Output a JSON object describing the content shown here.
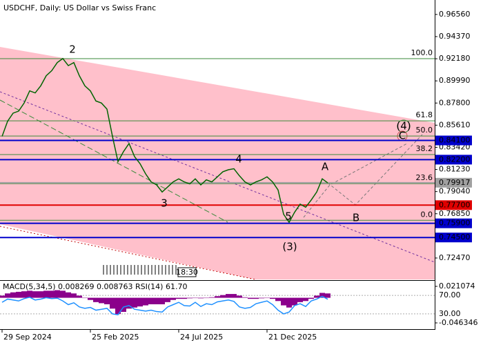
{
  "chart_data": {
    "type": "line",
    "title": "USDCHF, Daily:  US Dollar vs Swiss Franc",
    "categories": [
      "29 Sep 2024",
      null,
      null,
      null,
      null,
      null,
      null,
      null,
      null,
      null,
      null,
      null,
      null,
      null,
      null,
      null,
      "25 Feb 2025",
      null,
      null,
      null,
      null,
      null,
      null,
      null,
      null,
      null,
      null,
      null,
      null,
      null,
      null,
      null,
      "24 Jul 2025",
      null,
      null,
      null,
      null,
      null,
      null,
      null,
      null,
      null,
      null,
      null,
      null,
      null,
      null,
      null,
      "21 Dec 2025",
      null,
      null,
      null,
      null,
      null,
      null,
      null,
      null,
      null,
      null,
      null
    ],
    "series": [
      {
        "color": "#006400",
        "values": [
          0.845,
          0.86,
          0.868,
          0.87,
          0.878,
          0.89,
          0.888,
          0.895,
          0.905,
          0.91,
          0.918,
          0.922,
          0.915,
          0.918,
          0.905,
          0.895,
          0.89,
          0.88,
          0.878,
          0.872,
          0.845,
          0.82,
          0.83,
          0.838,
          0.825,
          0.818,
          0.808,
          0.8,
          0.797,
          0.79,
          0.795,
          0.8,
          0.803,
          0.8,
          0.798,
          0.803,
          0.797,
          0.802,
          0.8,
          0.805,
          0.81,
          0.812,
          0.813,
          0.806,
          0.8,
          0.797,
          0.8,
          0.802,
          0.805,
          0.8,
          0.792,
          0.768,
          0.76,
          0.77,
          0.778,
          0.775,
          0.782,
          0.79,
          0.803,
          0.799
        ]
      }
    ],
    "ylim": [
      0.7035,
      0.9799
    ],
    "yticks": [
      {
        "value": 0.9656,
        "label": "0.96560"
      },
      {
        "value": 0.9437,
        "label": "0.94370"
      },
      {
        "value": 0.9218,
        "label": "0.92180"
      },
      {
        "value": 0.8999,
        "label": "0.89990"
      },
      {
        "value": 0.878,
        "label": "0.87800"
      },
      {
        "value": 0.8561,
        "label": "0.85610"
      },
      {
        "value": 0.8342,
        "label": "0.83420"
      },
      {
        "value": 0.8123,
        "label": "0.81230"
      },
      {
        "value": 0.7904,
        "label": "0.79040"
      },
      {
        "value": 0.7685,
        "label": "0.76850"
      },
      {
        "value": 0.7247,
        "label": "0.72470"
      }
    ],
    "levels": [
      {
        "value": 0.841,
        "label": "0.84100",
        "color": "#0000cc"
      },
      {
        "value": 0.822,
        "label": "0.82200",
        "color": "#0000cc"
      },
      {
        "value": 0.79917,
        "label": "0.79917",
        "color": "#a0a0a0"
      },
      {
        "value": 0.777,
        "label": "0.77700",
        "color": "#e00000"
      },
      {
        "value": 0.759,
        "label": "0.75900",
        "color": "#0000cc"
      },
      {
        "value": 0.745,
        "label": "0.74500",
        "color": "#0000cc"
      }
    ],
    "fib_levels": [
      {
        "ratio": {
          "value": 100,
          "label": "100.0"
        },
        "price": 0.9219
      },
      {
        "ratio": {
          "value": 61.8,
          "label": "61.8"
        },
        "price": 0.8604
      },
      {
        "ratio": {
          "value": 50,
          "label": "50.0"
        },
        "price": 0.8454
      },
      {
        "ratio": {
          "value": 38.2,
          "label": "38.2"
        },
        "price": 0.827
      },
      {
        "ratio": {
          "value": 23.6,
          "label": "23.6"
        },
        "price": 0.7983
      },
      {
        "ratio": {
          "value": 0,
          "label": "0.0"
        },
        "price": 0.762
      }
    ],
    "wave_labels": [
      "2",
      "3",
      "4",
      "5",
      "(3)",
      "A",
      "B",
      "C",
      "(4)"
    ],
    "time_label": "18:30",
    "indicator": {
      "title": "MACD(5,34,5) 0.008269 0.008763 RSI(14) 61.70",
      "macd": {
        "color": "#8b008b",
        "ylim": [
          -0.0553,
          0.03
        ],
        "yticks": [
          0.021074,
          -0.046346
        ],
        "values": [
          0.004,
          0.008,
          0.01,
          0.011,
          0.012,
          0.013,
          0.012,
          0.012,
          0.013,
          0.013,
          0.014,
          0.013,
          0.01,
          0.008,
          0.004,
          0.0,
          -0.004,
          -0.008,
          -0.01,
          -0.012,
          -0.02,
          -0.03,
          -0.026,
          -0.02,
          -0.018,
          -0.016,
          -0.014,
          -0.012,
          -0.012,
          -0.012,
          -0.008,
          -0.004,
          -0.002,
          -0.002,
          -0.001,
          0.0,
          -0.001,
          0.0,
          0.001,
          0.003,
          0.005,
          0.007,
          0.007,
          0.004,
          0.001,
          -0.002,
          -0.002,
          -0.001,
          0.0,
          -0.002,
          -0.006,
          -0.014,
          -0.018,
          -0.014,
          -0.008,
          -0.006,
          -0.002,
          0.004,
          0.009,
          0.008
        ]
      },
      "rsi": {
        "color": "#1e90ff",
        "ylim": [
          0,
          100
        ],
        "yticks": [
          {
            "value": 70,
            "label": "70.00"
          },
          {
            "value": 30,
            "label": "30.00"
          }
        ],
        "values": [
          55,
          62,
          60,
          58,
          63,
          66,
          60,
          62,
          65,
          63,
          64,
          58,
          50,
          54,
          45,
          42,
          44,
          38,
          40,
          42,
          30,
          28,
          45,
          48,
          40,
          38,
          36,
          38,
          35,
          34,
          45,
          50,
          55,
          48,
          47,
          55,
          46,
          52,
          50,
          56,
          58,
          60,
          57,
          45,
          42,
          44,
          52,
          55,
          58,
          50,
          38,
          30,
          34,
          48,
          52,
          46,
          58,
          62,
          68,
          61.7
        ]
      }
    }
  }
}
